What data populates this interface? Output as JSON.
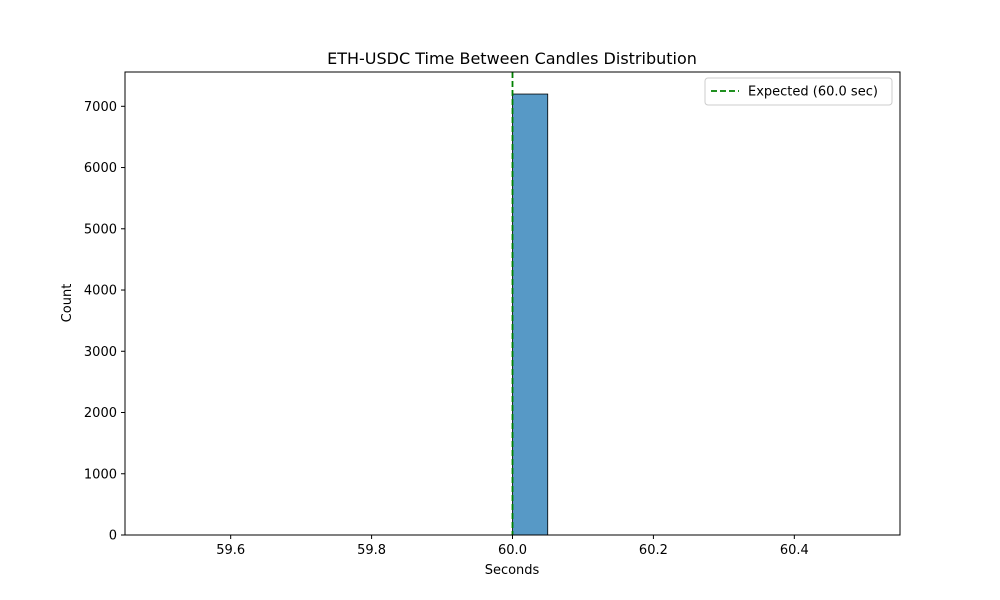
{
  "chart_data": {
    "type": "bar",
    "title": "ETH-USDC Time Between Candles Distribution",
    "xlabel": "Seconds",
    "ylabel": "Count",
    "xlim": [
      59.45,
      60.55
    ],
    "ylim": [
      0,
      7560
    ],
    "x_ticks": [
      59.6,
      59.8,
      60.0,
      60.2,
      60.4
    ],
    "x_tick_labels": [
      "59.6",
      "59.8",
      "60.0",
      "60.2",
      "60.4"
    ],
    "y_ticks": [
      0,
      1000,
      2000,
      3000,
      4000,
      5000,
      6000,
      7000
    ],
    "y_tick_labels": [
      "0",
      "1000",
      "2000",
      "3000",
      "4000",
      "5000",
      "6000",
      "7000"
    ],
    "bins": [
      {
        "x0": 59.5,
        "x1": 59.55,
        "count": 0
      },
      {
        "x0": 59.55,
        "x1": 59.6,
        "count": 0
      },
      {
        "x0": 59.6,
        "x1": 59.65,
        "count": 0
      },
      {
        "x0": 59.65,
        "x1": 59.7,
        "count": 0
      },
      {
        "x0": 59.7,
        "x1": 59.75,
        "count": 0
      },
      {
        "x0": 59.75,
        "x1": 59.8,
        "count": 0
      },
      {
        "x0": 59.8,
        "x1": 59.85,
        "count": 0
      },
      {
        "x0": 59.85,
        "x1": 59.9,
        "count": 0
      },
      {
        "x0": 59.9,
        "x1": 59.95,
        "count": 0
      },
      {
        "x0": 59.95,
        "x1": 60.0,
        "count": 0
      },
      {
        "x0": 60.0,
        "x1": 60.05,
        "count": 7200
      },
      {
        "x0": 60.05,
        "x1": 60.1,
        "count": 0
      },
      {
        "x0": 60.1,
        "x1": 60.15,
        "count": 0
      },
      {
        "x0": 60.15,
        "x1": 60.2,
        "count": 0
      },
      {
        "x0": 60.2,
        "x1": 60.25,
        "count": 0
      },
      {
        "x0": 60.25,
        "x1": 60.3,
        "count": 0
      },
      {
        "x0": 60.3,
        "x1": 60.35,
        "count": 0
      },
      {
        "x0": 60.35,
        "x1": 60.4,
        "count": 0
      },
      {
        "x0": 60.4,
        "x1": 60.45,
        "count": 0
      },
      {
        "x0": 60.45,
        "x1": 60.5,
        "count": 0
      }
    ],
    "expected_line": {
      "x": 60.0,
      "label": "Expected (60.0 sec)",
      "color": "#008000",
      "style": "dashed"
    },
    "bar_color": "#5799c6",
    "bar_edge_color": "#000000",
    "grid": false,
    "legend_position": "top-right"
  }
}
